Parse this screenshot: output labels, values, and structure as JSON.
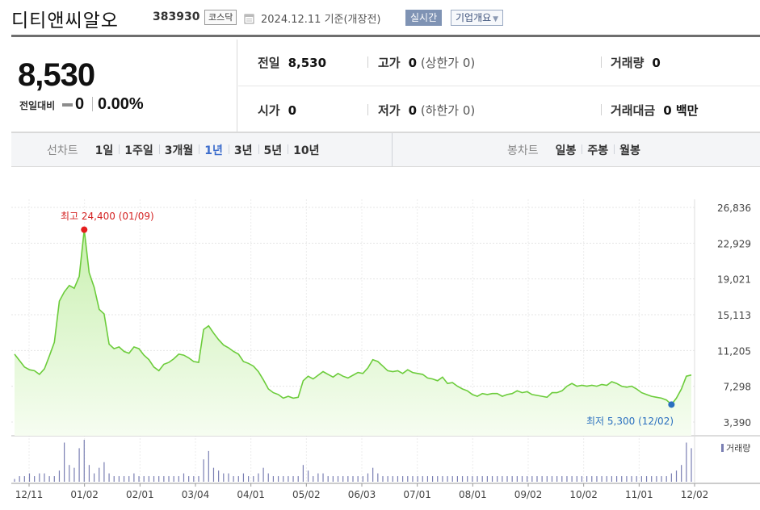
{
  "header": {
    "company_name": "디티앤씨알오",
    "ticker": "383930",
    "market": "코스닥",
    "date_note": "2024.12.11  기준(개장전)",
    "realtime_button": "실시간",
    "overview_button": "기업개요",
    "icons": {
      "date": "calendar-icon",
      "overview_caret": "caret-down-icon"
    }
  },
  "quote": {
    "price": "8,530",
    "change_label": "전일대비",
    "change_value": "0",
    "change_percent": "0.00%",
    "prev_close_label": "전일",
    "prev_close": "8,530",
    "high_label": "고가",
    "high": "0",
    "upper_limit": "(상한가 0)",
    "volume_label": "거래량",
    "volume": "0",
    "open_label": "시가",
    "open": "0",
    "low_label": "저가",
    "low": "0",
    "lower_limit": "(하한가 0)",
    "value_label": "거래대금",
    "value": "0 백만"
  },
  "tabs": {
    "line_title": "선차트",
    "line_tabs": [
      "1일",
      "1주일",
      "3개월",
      "1년",
      "3년",
      "5년",
      "10년"
    ],
    "active_line_tab": "1년",
    "candle_title": "봉차트",
    "candle_tabs": [
      "일봉",
      "주봉",
      "월봉"
    ]
  },
  "chart_data": {
    "type": "area",
    "y_ticks": [
      "26,836",
      "22,929",
      "19,021",
      "15,113",
      "11,205",
      "7,298",
      "3,390"
    ],
    "ylim": [
      3390,
      26836
    ],
    "x_tick_labels": [
      "12/11",
      "01/02",
      "02/01",
      "03/04",
      "04/01",
      "05/02",
      "06/03",
      "07/01",
      "08/01",
      "09/02",
      "10/02",
      "11/01",
      "12/02"
    ],
    "high_annotation": "최고 24,400 (01/09)",
    "low_annotation": "최저 5,300 (12/02)",
    "volume_legend": "거래량",
    "colors": {
      "line": "#6ccc3b",
      "fill_top": "#c9f0b0",
      "fill_bottom": "#f6fdf1",
      "high": "#e51e1e",
      "low": "#2a6fbf",
      "volume": "#7a7fb3"
    },
    "grid": true,
    "series": [
      {
        "values": [
          10800,
          10100,
          9400,
          9100,
          9000,
          8600,
          9200,
          10600,
          12100,
          16600,
          17600,
          18300,
          18000,
          19300,
          24400,
          19700,
          18100,
          15700,
          15200,
          11900,
          11400,
          11600,
          11100,
          10900,
          11600,
          11400,
          10700,
          10200,
          9400,
          9000,
          9700,
          9900,
          10300,
          10800,
          10700,
          10400,
          10000,
          9900,
          13500,
          13900,
          13100,
          12400,
          11800,
          11500,
          11100,
          10800,
          10000,
          9800,
          9500,
          8900,
          8000,
          7000,
          6600,
          6400,
          6000,
          6200,
          6000,
          6100,
          7900,
          8400,
          8100,
          8500,
          8900,
          8600,
          8300,
          8700,
          8400,
          8200,
          8500,
          8800,
          8700,
          9300,
          10200,
          10000,
          9500,
          9000,
          8900,
          9000,
          8700,
          9100,
          8800,
          8700,
          8600,
          8200,
          8100,
          7900,
          8300,
          7600,
          7700,
          7300,
          7000,
          6800,
          6400,
          6200,
          6500,
          6400,
          6500,
          6500,
          6200,
          6400,
          6500,
          6800,
          6600,
          6700,
          6400,
          6300,
          6200,
          6100,
          6600,
          6600,
          6800,
          7300,
          7600,
          7300,
          7400,
          7300,
          7400,
          7300,
          7500,
          7400,
          7800,
          7600,
          7300,
          7200,
          7300,
          7000,
          6600,
          6400,
          6200,
          6100,
          6000,
          5800,
          5300,
          6000,
          7000,
          8400,
          8530
        ]
      }
    ],
    "volume_bars": [
      1,
      2,
      2,
      3,
      2,
      3,
      3,
      2,
      2,
      4,
      14,
      6,
      5,
      12,
      15,
      6,
      3,
      5,
      7,
      3,
      2,
      2,
      2,
      2,
      3,
      2,
      2,
      2,
      2,
      2,
      2,
      2,
      2,
      2,
      3,
      2,
      2,
      2,
      8,
      11,
      5,
      4,
      3,
      3,
      2,
      2,
      3,
      2,
      2,
      3,
      5,
      3,
      2,
      2,
      2,
      2,
      2,
      2,
      6,
      4,
      2,
      3,
      3,
      2,
      2,
      2,
      2,
      2,
      2,
      2,
      2,
      3,
      5,
      3,
      2,
      2,
      2,
      2,
      2,
      2,
      2,
      2,
      2,
      2,
      2,
      2,
      2,
      2,
      2,
      2,
      2,
      2,
      2,
      2,
      2,
      2,
      2,
      2,
      2,
      2,
      2,
      2,
      2,
      2,
      2,
      2,
      2,
      2,
      2,
      2,
      2,
      2,
      2,
      2,
      2,
      2,
      2,
      2,
      2,
      2,
      2,
      2,
      2,
      2,
      2,
      2,
      2,
      2,
      2,
      2,
      2,
      2,
      3,
      4,
      6,
      14,
      12
    ]
  }
}
